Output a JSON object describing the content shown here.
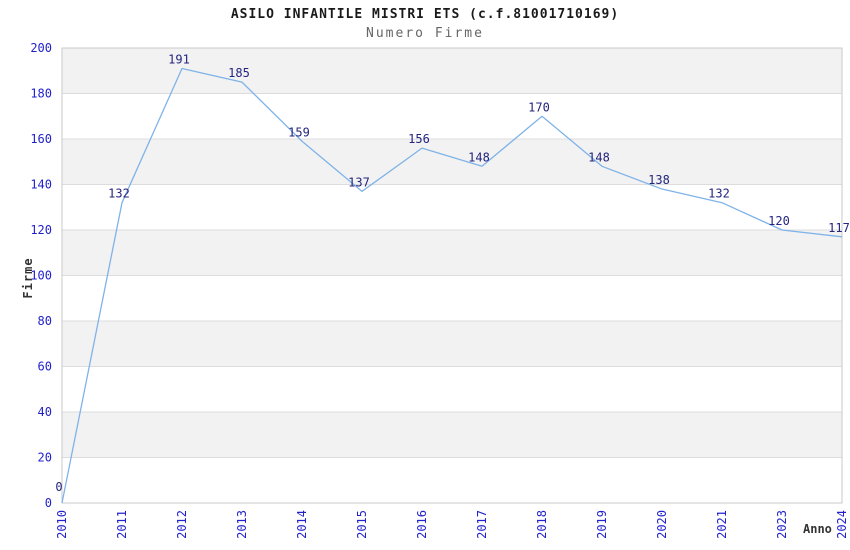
{
  "header": {
    "title": "ASILO INFANTILE MISTRI ETS (c.f.81001710169)",
    "subtitle": "Numero Firme"
  },
  "chart_data": {
    "type": "line",
    "title": "ASILO INFANTILE MISTRI ETS (c.f.81001710169)",
    "subtitle": "Numero Firme",
    "xlabel": "Anno",
    "ylabel": "Firme",
    "categories": [
      "2010",
      "2011",
      "2012",
      "2013",
      "2014",
      "2015",
      "2016",
      "2017",
      "2018",
      "2019",
      "2020",
      "2021",
      "2023",
      "2024"
    ],
    "values": [
      0,
      132,
      191,
      185,
      159,
      137,
      156,
      148,
      170,
      148,
      138,
      132,
      120,
      117
    ],
    "ylim": [
      0,
      200
    ],
    "ytick_step": 20,
    "yticks": [
      0,
      20,
      40,
      60,
      80,
      100,
      120,
      140,
      160,
      180,
      200
    ],
    "grid": "horizontal-bands-alternating",
    "legend": "none",
    "data_labels_shown": true,
    "colors": {
      "line": "#7fb3e8",
      "data_label": "#24247e",
      "tick_label": "#2222cc",
      "band_gray": "#f2f2f2",
      "band_white": "#ffffff",
      "gridline": "#dcdcdc",
      "plot_border": "#c9c9c9",
      "title": "#1a1a1a",
      "subtitle": "#666666",
      "axis_title": "#333333"
    }
  }
}
